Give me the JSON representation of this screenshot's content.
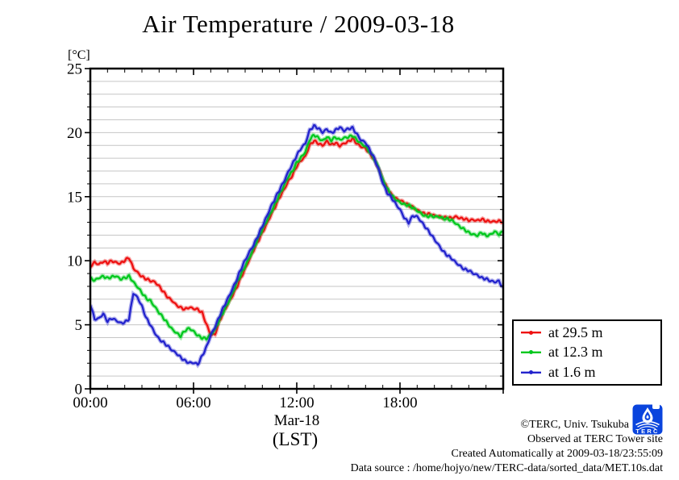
{
  "title": "Air Temperature / 2009-03-18",
  "y_axis": {
    "unit_label": "[°C]",
    "ticks": [
      0,
      5,
      10,
      15,
      20,
      25
    ]
  },
  "x_axis": {
    "tick_hours": [
      0,
      6,
      12,
      18
    ],
    "tick_labels": [
      "00:00",
      "06:00",
      "12:00",
      "18:00"
    ],
    "date_label": "Mar-18",
    "timezone_label": "(LST)"
  },
  "legend": {
    "entries": [
      {
        "label": "at 29.5 m",
        "color": "#ee1111"
      },
      {
        "label": "at 12.3 m",
        "color": "#00c81e"
      },
      {
        "label": "at 1.6 m",
        "color": "#2323cd"
      }
    ]
  },
  "credits": {
    "line1": "©TERC, Univ. Tsukuba",
    "line2": "Observed at TERC Tower site",
    "line3": "Created Automatically at 2009-03-18/23:55:09",
    "line4": "Data source : /home/hojyo/new/TERC-data/sorted_data/MET.10s.dat"
  },
  "logo": {
    "text": "TERC",
    "color": "#0a44dd"
  },
  "chart_data": {
    "type": "line",
    "title": "Air Temperature / 2009-03-18",
    "xlabel": "Mar-18 (LST), hour of day",
    "ylabel": "Air temperature [°C]",
    "xlim": [
      0,
      24
    ],
    "ylim": [
      0,
      25
    ],
    "grid": "horizontal only, every 1 °C, light gray",
    "x_major_tick_hours": 6,
    "x_minor_tick_hours": 1,
    "y_major_tick": 5,
    "y_minor_tick": 1,
    "legend_position": "outside lower right",
    "x_start": 0,
    "x_step_hours": 0.25,
    "series": [
      {
        "name": "at 29.5 m",
        "color": "#ee1111",
        "values": [
          9.6,
          9.9,
          9.7,
          9.9,
          9.8,
          10.0,
          9.9,
          9.8,
          10.0,
          10.2,
          9.4,
          9.1,
          8.8,
          8.6,
          8.4,
          8.3,
          8.0,
          7.6,
          7.2,
          6.9,
          6.5,
          6.3,
          6.2,
          6.4,
          6.3,
          6.2,
          5.9,
          5.0,
          4.2,
          4.3,
          5.3,
          6.0,
          6.6,
          7.2,
          7.9,
          8.7,
          9.4,
          10.1,
          10.8,
          11.5,
          12.2,
          12.9,
          13.6,
          14.2,
          14.9,
          15.5,
          16.2,
          16.7,
          17.4,
          17.8,
          18.1,
          19.0,
          19.4,
          19.2,
          19.0,
          19.3,
          19.0,
          19.2,
          19.0,
          19.2,
          19.3,
          19.5,
          19.1,
          18.9,
          18.8,
          18.4,
          17.9,
          17.2,
          16.3,
          15.7,
          15.2,
          14.9,
          14.7,
          14.5,
          14.3,
          14.2,
          14.0,
          13.8,
          13.6,
          13.6,
          13.5,
          13.5,
          13.4,
          13.4,
          13.3,
          13.4,
          13.3,
          13.3,
          13.2,
          13.2,
          13.1,
          13.2,
          13.1,
          13.1,
          13.1,
          13.1,
          13.0
        ]
      },
      {
        "name": "at 12.3 m",
        "color": "#00c81e",
        "values": [
          8.6,
          8.5,
          8.7,
          8.8,
          8.6,
          8.7,
          8.8,
          8.6,
          8.7,
          8.8,
          8.3,
          7.9,
          7.5,
          7.1,
          6.9,
          6.4,
          5.9,
          5.5,
          5.1,
          4.7,
          4.4,
          4.1,
          4.5,
          4.7,
          4.5,
          4.2,
          4.0,
          3.9,
          4.2,
          4.6,
          5.4,
          6.1,
          6.7,
          7.4,
          8.2,
          8.9,
          9.6,
          10.3,
          11.0,
          11.7,
          12.4,
          13.1,
          13.8,
          14.5,
          15.2,
          15.8,
          16.5,
          17.0,
          17.7,
          18.1,
          18.5,
          19.4,
          19.8,
          19.6,
          19.4,
          19.7,
          19.4,
          19.6,
          19.4,
          19.6,
          19.7,
          19.8,
          19.4,
          19.1,
          18.9,
          18.5,
          18.0,
          17.3,
          16.3,
          15.6,
          15.1,
          14.8,
          14.6,
          14.4,
          14.3,
          14.1,
          13.9,
          13.7,
          13.5,
          13.5,
          13.4,
          13.4,
          13.3,
          13.3,
          13.2,
          12.9,
          12.6,
          12.4,
          12.2,
          12.1,
          12.0,
          12.2,
          11.9,
          12.0,
          12.3,
          12.1,
          12.3
        ]
      },
      {
        "name": "at 1.6 m",
        "color": "#2323cd",
        "values": [
          6.6,
          5.4,
          5.5,
          5.9,
          5.3,
          5.5,
          5.3,
          5.1,
          5.2,
          5.5,
          7.5,
          7.1,
          6.4,
          5.5,
          5.0,
          4.4,
          3.9,
          3.6,
          3.3,
          3.0,
          2.8,
          2.5,
          2.2,
          2.0,
          2.0,
          1.9,
          2.6,
          3.3,
          4.2,
          4.8,
          5.6,
          6.4,
          7.1,
          7.8,
          8.5,
          9.3,
          10.0,
          10.7,
          11.3,
          12.0,
          12.7,
          13.4,
          14.2,
          14.9,
          15.6,
          16.2,
          16.9,
          17.5,
          18.2,
          18.8,
          19.2,
          20.2,
          20.5,
          20.3,
          20.0,
          20.3,
          20.0,
          20.2,
          20.4,
          20.1,
          20.3,
          20.4,
          19.9,
          19.4,
          19.2,
          18.6,
          18.0,
          17.2,
          16.1,
          15.3,
          14.9,
          14.4,
          14.0,
          13.4,
          13.0,
          13.5,
          13.4,
          13.0,
          12.6,
          12.2,
          11.7,
          11.2,
          10.7,
          10.4,
          10.2,
          9.9,
          9.6,
          9.3,
          9.2,
          9.0,
          8.9,
          8.7,
          8.6,
          8.4,
          8.3,
          8.4,
          7.9
        ]
      }
    ]
  }
}
